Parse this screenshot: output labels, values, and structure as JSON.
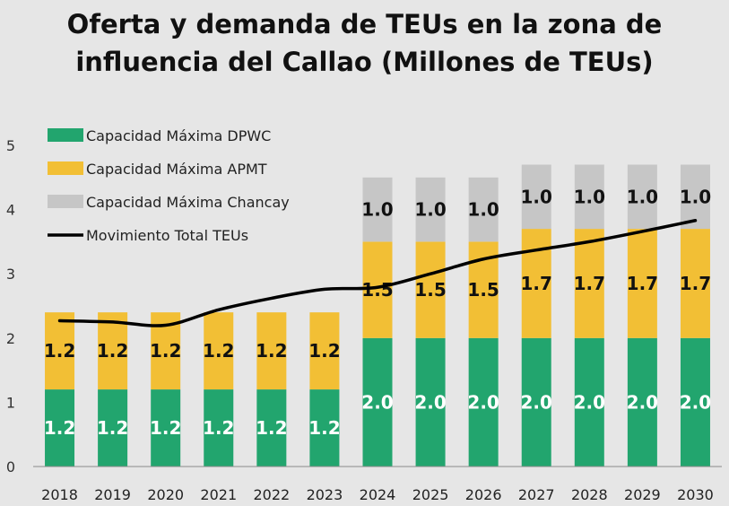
{
  "chart_data": {
    "type": "bar",
    "title": "Oferta y demanda de TEUs en la zona de influencia del Callao (Millones de TEUs)",
    "title_lines": [
      "Oferta y demanda de TEUs en la zona de",
      "influencia del Callao (Millones de TEUs)"
    ],
    "stacked": true,
    "categories": [
      "2018",
      "2019",
      "2020",
      "2021",
      "2022",
      "2023",
      "2024",
      "2025",
      "2026",
      "2027",
      "2028",
      "2029",
      "2030"
    ],
    "ylim": [
      0,
      5
    ],
    "yticks": [
      "0",
      "1",
      "2",
      "3",
      "4",
      "5"
    ],
    "legend_position": "top-left",
    "grid": false,
    "series": [
      {
        "name": "Capacidad Máxima  DPWC",
        "color": "#22a56e",
        "label_color": "#ffffff",
        "values": [
          1.2,
          1.2,
          1.2,
          1.2,
          1.2,
          1.2,
          2.0,
          2.0,
          2.0,
          2.0,
          2.0,
          2.0,
          2.0
        ],
        "labels": [
          "1.2",
          "1.2",
          "1.2",
          "1.2",
          "1.2",
          "1.2",
          "2.0",
          "2.0",
          "2.0",
          "2.0",
          "2.0",
          "2.0",
          "2.0"
        ]
      },
      {
        "name": "Capacidad Máxima APMT",
        "color": "#f2bf35",
        "label_color": "#111111",
        "values": [
          1.2,
          1.2,
          1.2,
          1.2,
          1.2,
          1.2,
          1.5,
          1.5,
          1.5,
          1.7,
          1.7,
          1.7,
          1.7
        ],
        "labels": [
          "1.2",
          "1.2",
          "1.2",
          "1.2",
          "1.2",
          "1.2",
          "1.5",
          "1.5",
          "1.5",
          "1.7",
          "1.7",
          "1.7",
          "1.7"
        ]
      },
      {
        "name": "Capacidad Máxima Chancay",
        "color": "#c6c6c6",
        "label_color": "#111111",
        "values": [
          0,
          0,
          0,
          0,
          0,
          0,
          1.0,
          1.0,
          1.0,
          1.0,
          1.0,
          1.0,
          1.0
        ],
        "labels": [
          "",
          "",
          "",
          "",
          "",
          "",
          "1.0",
          "1.0",
          "1.0",
          "1.0",
          "1.0",
          "1.0",
          "1.0"
        ]
      }
    ],
    "line": {
      "name": "Movimiento Total TEUs",
      "color": "#000000",
      "values": [
        2.27,
        2.25,
        2.2,
        2.44,
        2.62,
        2.76,
        2.79,
        3.0,
        3.23,
        3.37,
        3.5,
        3.66,
        3.83
      ]
    }
  }
}
